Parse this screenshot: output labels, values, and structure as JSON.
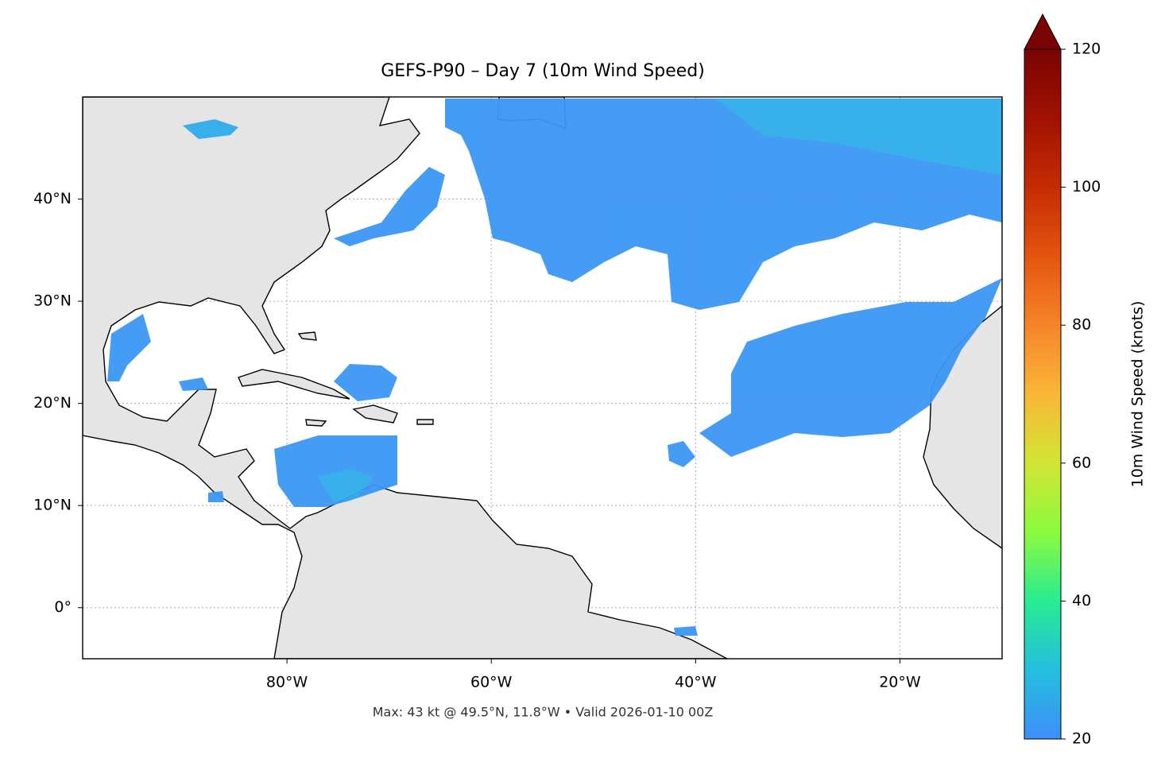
{
  "chart_data": {
    "type": "map",
    "title": "GEFS-P90 – Day 7 (10m Wind Speed)",
    "xlim": [
      -100,
      -10
    ],
    "ylim": [
      -5,
      50
    ],
    "xticks": [
      {
        "value": -80,
        "label": "80°W"
      },
      {
        "value": -60,
        "label": "60°W"
      },
      {
        "value": -40,
        "label": "40°W"
      },
      {
        "value": -20,
        "label": "20°W"
      }
    ],
    "yticks": [
      {
        "value": 0,
        "label": "0°"
      },
      {
        "value": 10,
        "label": "10°N"
      },
      {
        "value": 20,
        "label": "20°N"
      },
      {
        "value": 30,
        "label": "30°N"
      },
      {
        "value": 40,
        "label": "40°N"
      }
    ],
    "grid": true,
    "colorbar": {
      "label": "10m Wind Speed (knots)",
      "lim": [
        20,
        120
      ],
      "ticks": [
        20,
        40,
        60,
        80,
        100,
        120
      ],
      "extend": "max"
    },
    "annotation": "Max: 43 kt @ 49.5°N, 11.8°W • Valid 2026-01-10 00Z"
  }
}
